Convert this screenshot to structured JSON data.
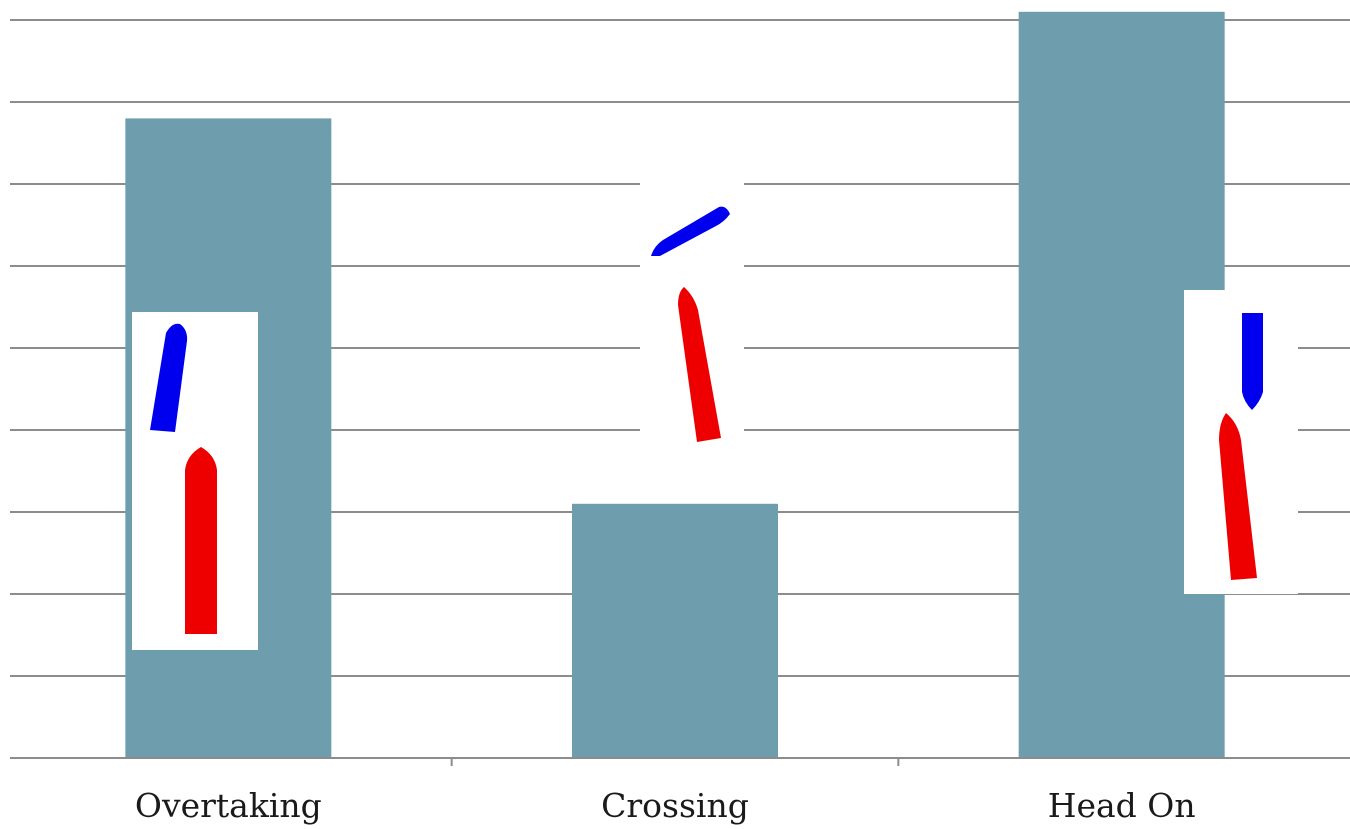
{
  "chart_data": {
    "type": "bar",
    "categories": [
      "Overtaking",
      "Crossing",
      "Head On"
    ],
    "values": [
      7.8,
      3.1,
      9.1
    ],
    "ylim": [
      0,
      9
    ],
    "grid": true,
    "bar_color": "#6e9eae",
    "title": "",
    "xlabel": "",
    "ylabel": ""
  },
  "illustrations": [
    {
      "category": "Overtaking",
      "vessels": [
        "blue-vessel-icon",
        "red-vessel-icon"
      ]
    },
    {
      "category": "Crossing",
      "vessels": [
        "blue-vessel-icon",
        "red-vessel-icon"
      ]
    },
    {
      "category": "Head On",
      "vessels": [
        "blue-vessel-icon",
        "red-vessel-icon"
      ]
    }
  ],
  "colors": {
    "blue_vessel": "#0000ee",
    "red_vessel": "#ee0000"
  }
}
